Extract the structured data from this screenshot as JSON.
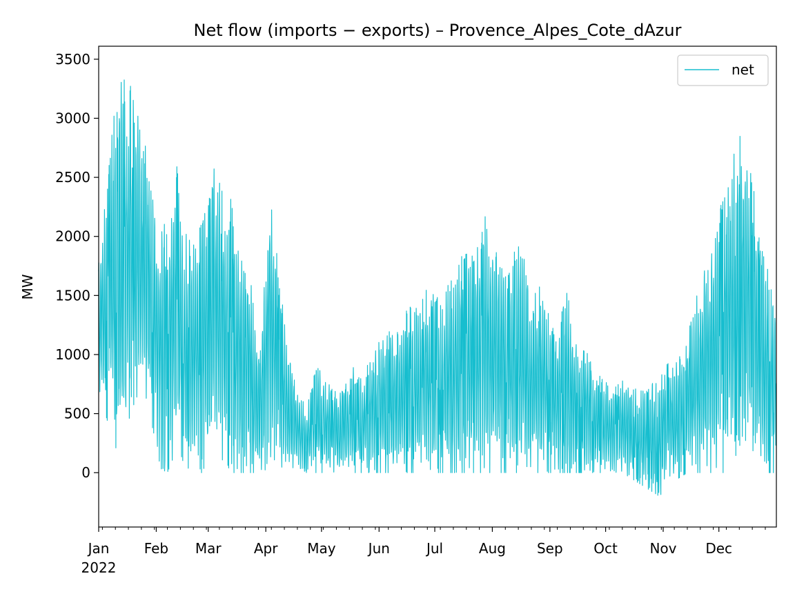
{
  "chart_data": {
    "type": "line",
    "title": "Net flow (imports − exports) – Provence_Alpes_Cote_dAzur",
    "xlabel": "",
    "ylabel": "MW",
    "ylim": [
      -460,
      3610
    ],
    "yticks": [
      0,
      500,
      1000,
      1500,
      2000,
      2500,
      3000,
      3500
    ],
    "xlim": [
      "2022-01-01",
      "2022-12-31T23:00"
    ],
    "xticks": [
      {
        "date": "2022-01-01",
        "label": "Jan"
      },
      {
        "date": "2022-02-01",
        "label": "Feb"
      },
      {
        "date": "2022-03-01",
        "label": "Mar"
      },
      {
        "date": "2022-04-01",
        "label": "Apr"
      },
      {
        "date": "2022-05-01",
        "label": "May"
      },
      {
        "date": "2022-06-01",
        "label": "Jun"
      },
      {
        "date": "2022-07-01",
        "label": "Jul"
      },
      {
        "date": "2022-08-01",
        "label": "Aug"
      },
      {
        "date": "2022-09-01",
        "label": "Sep"
      },
      {
        "date": "2022-10-01",
        "label": "Oct"
      },
      {
        "date": "2022-11-01",
        "label": "Nov"
      },
      {
        "date": "2022-12-01",
        "label": "Dec"
      }
    ],
    "year_label": "2022",
    "grid": false,
    "legend_position": "upper right",
    "series": [
      {
        "name": "net",
        "color": "#17becf",
        "note_resolution": "hourly; envelope shown as approximate daily min/max",
        "x": [
          "2022-01-03",
          "2022-01-08",
          "2022-01-13",
          "2022-01-18",
          "2022-01-23",
          "2022-01-28",
          "2022-02-02",
          "2022-02-07",
          "2022-02-12",
          "2022-02-17",
          "2022-02-22",
          "2022-02-27",
          "2022-03-04",
          "2022-03-09",
          "2022-03-14",
          "2022-03-19",
          "2022-03-24",
          "2022-03-29",
          "2022-04-03",
          "2022-04-08",
          "2022-04-13",
          "2022-04-18",
          "2022-04-23",
          "2022-04-28",
          "2022-05-03",
          "2022-05-08",
          "2022-05-13",
          "2022-05-18",
          "2022-05-23",
          "2022-05-28",
          "2022-06-02",
          "2022-06-07",
          "2022-06-12",
          "2022-06-17",
          "2022-06-22",
          "2022-06-27",
          "2022-07-02",
          "2022-07-07",
          "2022-07-12",
          "2022-07-17",
          "2022-07-22",
          "2022-07-27",
          "2022-08-01",
          "2022-08-06",
          "2022-08-11",
          "2022-08-16",
          "2022-08-21",
          "2022-08-26",
          "2022-08-31",
          "2022-09-05",
          "2022-09-10",
          "2022-09-15",
          "2022-09-20",
          "2022-09-25",
          "2022-09-30",
          "2022-10-05",
          "2022-10-10",
          "2022-10-15",
          "2022-10-20",
          "2022-10-25",
          "2022-10-30",
          "2022-11-04",
          "2022-11-09",
          "2022-11-14",
          "2022-11-19",
          "2022-11-24",
          "2022-11-29",
          "2022-12-04",
          "2022-12-09",
          "2022-12-14",
          "2022-12-19",
          "2022-12-24",
          "2022-12-29"
        ],
        "high": [
          2050,
          2900,
          3420,
          3300,
          3100,
          2650,
          2150,
          2100,
          2650,
          2050,
          2150,
          2200,
          2650,
          2400,
          2300,
          1800,
          1600,
          1000,
          2550,
          1700,
          1050,
          700,
          550,
          950,
          800,
          700,
          750,
          900,
          800,
          1000,
          1150,
          1200,
          1250,
          1450,
          1400,
          1600,
          1500,
          1600,
          1700,
          2000,
          1900,
          2270,
          2000,
          1900,
          1800,
          2100,
          1500,
          1600,
          1400,
          1250,
          1620,
          1200,
          1050,
          900,
          800,
          700,
          800,
          750,
          700,
          750,
          800,
          1000,
          950,
          1150,
          1500,
          1800,
          2050,
          2400,
          2700,
          2950,
          2500,
          2000,
          1600
        ],
        "low": [
          600,
          300,
          100,
          500,
          700,
          600,
          50,
          0,
          200,
          50,
          0,
          0,
          200,
          100,
          0,
          0,
          0,
          0,
          0,
          0,
          0,
          50,
          0,
          0,
          0,
          0,
          0,
          0,
          0,
          0,
          0,
          0,
          0,
          0,
          0,
          0,
          0,
          0,
          0,
          0,
          0,
          0,
          0,
          0,
          0,
          0,
          0,
          0,
          0,
          0,
          0,
          0,
          0,
          0,
          0,
          0,
          0,
          -50,
          -100,
          -150,
          -200,
          -100,
          -50,
          0,
          0,
          0,
          0,
          0,
          100,
          300,
          200,
          0,
          0
        ]
      }
    ]
  }
}
